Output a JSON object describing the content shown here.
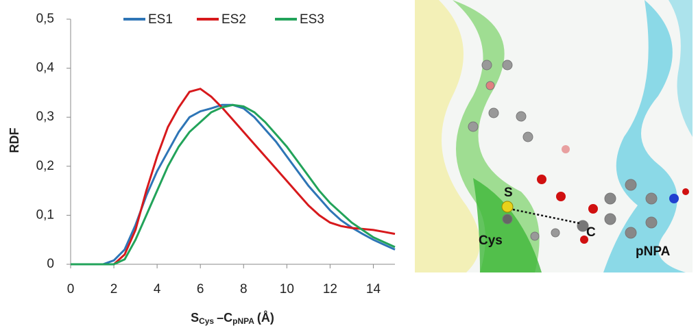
{
  "chart_data": {
    "type": "line",
    "y_label": "RDF",
    "x_label": {
      "s": "S",
      "s_sub": "Cys",
      "c": "–C",
      "c_sub": "pNPA",
      "unit": "(Å)"
    },
    "x": [
      0,
      0.5,
      1,
      1.5,
      2,
      2.5,
      3,
      3.5,
      4,
      4.5,
      5,
      5.5,
      6,
      6.5,
      7,
      7.5,
      8,
      8.5,
      9,
      9.5,
      10,
      10.5,
      11,
      11.5,
      12,
      12.5,
      13,
      13.5,
      14,
      14.5,
      15
    ],
    "series": [
      {
        "name": "ES1",
        "color": "#2e75b6",
        "values": [
          0,
          0,
          0,
          0,
          0.008,
          0.03,
          0.08,
          0.14,
          0.19,
          0.23,
          0.27,
          0.3,
          0.312,
          0.318,
          0.325,
          0.325,
          0.318,
          0.3,
          0.275,
          0.25,
          0.22,
          0.19,
          0.16,
          0.135,
          0.11,
          0.09,
          0.075,
          0.062,
          0.05,
          0.04,
          0.03
        ]
      },
      {
        "name": "ES2",
        "color": "#d7191c",
        "values": [
          0,
          0,
          0,
          0,
          0,
          0.02,
          0.07,
          0.15,
          0.22,
          0.28,
          0.32,
          0.352,
          0.358,
          0.342,
          0.32,
          0.295,
          0.27,
          0.245,
          0.22,
          0.195,
          0.17,
          0.145,
          0.12,
          0.1,
          0.085,
          0.078,
          0.074,
          0.072,
          0.07,
          0.066,
          0.062
        ]
      },
      {
        "name": "ES3",
        "color": "#22a35a",
        "values": [
          0,
          0,
          0,
          0,
          0,
          0.01,
          0.05,
          0.1,
          0.15,
          0.2,
          0.24,
          0.27,
          0.29,
          0.31,
          0.32,
          0.325,
          0.322,
          0.31,
          0.29,
          0.265,
          0.24,
          0.21,
          0.18,
          0.15,
          0.125,
          0.105,
          0.085,
          0.07,
          0.055,
          0.045,
          0.035
        ]
      }
    ],
    "xlim": [
      0,
      15
    ],
    "xticks": [
      0,
      2,
      4,
      6,
      8,
      10,
      12,
      14
    ],
    "ylim": [
      0,
      0.5
    ],
    "yticks": [
      0,
      {
        "value": 0.1,
        "label": "0,1"
      },
      {
        "value": 0.2,
        "label": "0,2"
      },
      {
        "value": 0.3,
        "label": "0,3"
      },
      {
        "value": 0.4,
        "label": "0,4"
      },
      {
        "value": 0.5,
        "label": "0,5"
      }
    ],
    "grid": false
  },
  "structure": {
    "labels": {
      "s": "S",
      "c": "C",
      "cys": "Cys",
      "pnpa": "pNPA"
    }
  }
}
